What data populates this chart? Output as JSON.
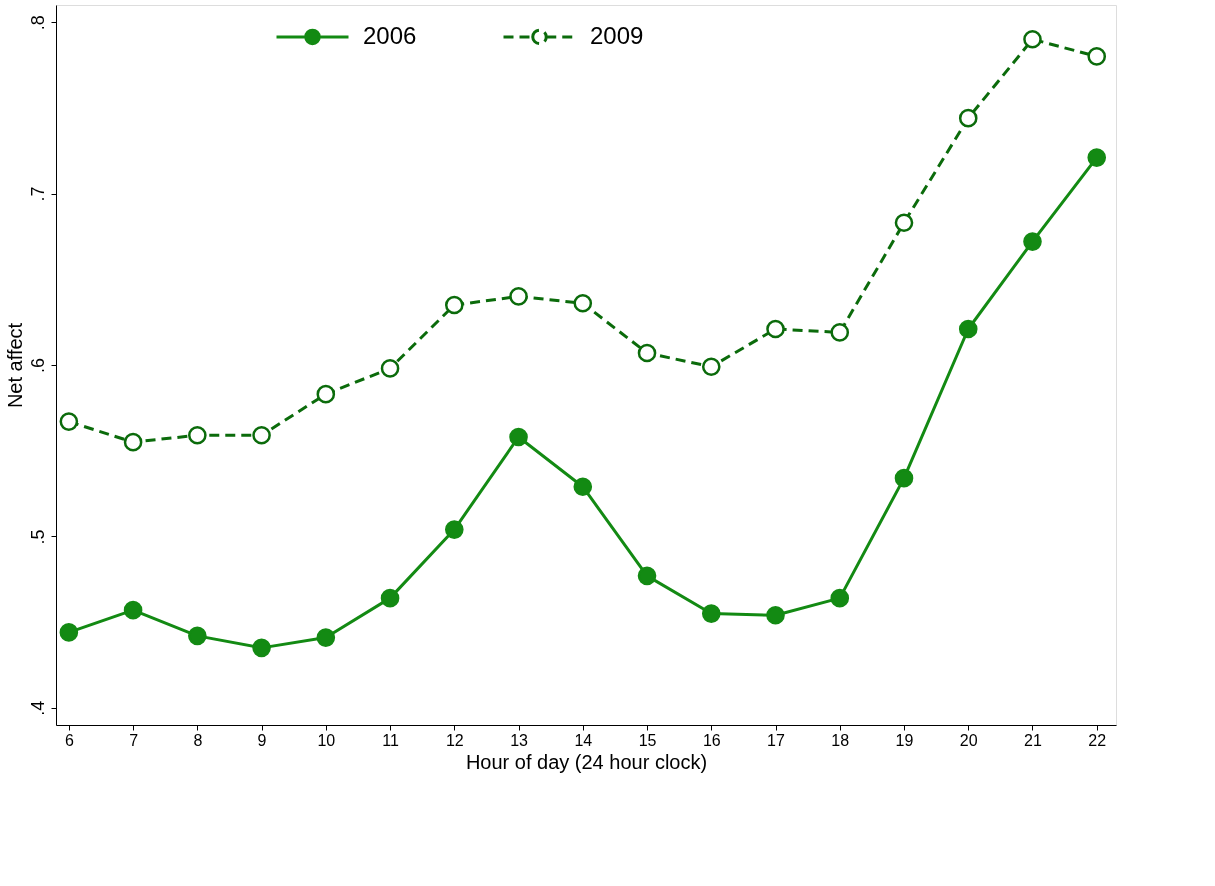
{
  "chart_data": {
    "type": "line",
    "xlabel": "Hour of day (24 hour clock)",
    "ylabel": "Net affect",
    "x": [
      6,
      7,
      8,
      9,
      10,
      11,
      12,
      13,
      14,
      15,
      16,
      17,
      18,
      19,
      20,
      21,
      22
    ],
    "series": [
      {
        "name": "2006",
        "color": "#138a13",
        "line_style": "solid",
        "values": [
          0.444,
          0.457,
          0.442,
          0.435,
          0.441,
          0.464,
          0.504,
          0.558,
          0.529,
          0.477,
          0.455,
          0.454,
          0.464,
          0.534,
          0.621,
          0.672,
          0.721
        ]
      },
      {
        "name": "2009",
        "color": "#0b6b0b",
        "line_style": "dashed",
        "values": [
          0.567,
          0.555,
          0.559,
          0.559,
          0.583,
          0.598,
          0.635,
          0.64,
          0.636,
          0.607,
          0.599,
          0.621,
          0.619,
          0.683,
          0.744,
          0.79,
          0.78
        ]
      }
    ],
    "xlim": [
      5.8,
      22.3
    ],
    "xticks": [
      6,
      7,
      8,
      9,
      10,
      11,
      12,
      13,
      14,
      15,
      16,
      17,
      18,
      19,
      20,
      21,
      22
    ],
    "ylim": [
      0.39,
      0.81
    ],
    "yticks": [
      {
        "value": 0.4,
        "label": ".4"
      },
      {
        "value": 0.5,
        "label": ".5"
      },
      {
        "value": 0.6,
        "label": ".6"
      },
      {
        "value": 0.7,
        "label": ".7"
      },
      {
        "value": 0.8,
        "label": ".8"
      }
    ],
    "grid": false,
    "legend": "top",
    "marker": "circle"
  }
}
